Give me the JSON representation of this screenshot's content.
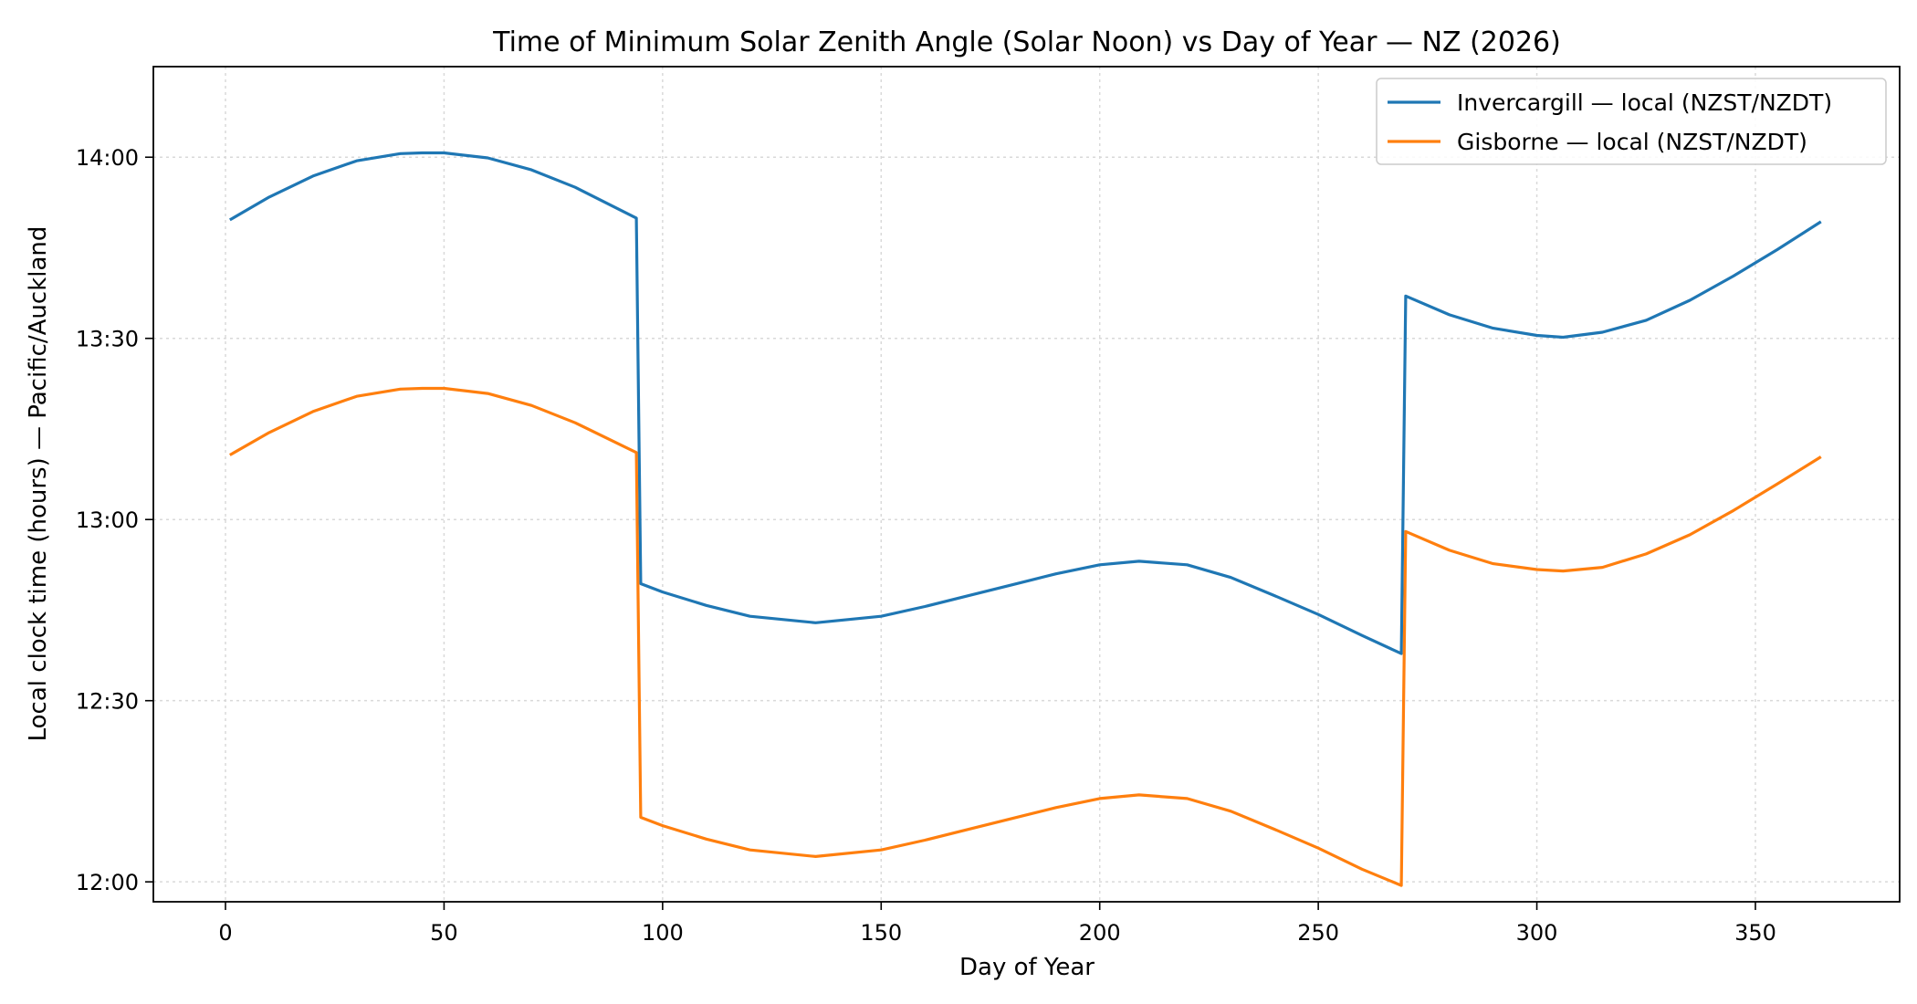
{
  "chart_data": {
    "type": "line",
    "title": "Time of Minimum Solar Zenith Angle (Solar Noon) vs Day of Year — NZ (2026)",
    "xlabel": "Day of Year",
    "ylabel": "Local clock time (hours) — Pacific/Auckland",
    "xlim": [
      -16.5,
      383
    ],
    "ylim": [
      11.945,
      14.25
    ],
    "xticks": [
      0,
      50,
      100,
      150,
      200,
      250,
      300,
      350
    ],
    "xtick_labels": [
      "0",
      "50",
      "100",
      "150",
      "200",
      "250",
      "300",
      "350"
    ],
    "yticks": [
      12.0,
      12.5,
      13.0,
      13.5,
      14.0
    ],
    "ytick_labels": [
      "12:00",
      "12:30",
      "13:00",
      "13:30",
      "14:00"
    ],
    "grid": true,
    "legend_position": "top-right",
    "series": [
      {
        "name": "Invercargill — local (NZST/NZDT)",
        "color": "#1f77b4",
        "x": [
          1,
          10,
          20,
          30,
          40,
          45,
          50,
          60,
          70,
          80,
          94,
          95,
          100,
          110,
          120,
          135,
          150,
          160,
          170,
          180,
          190,
          200,
          209,
          220,
          230,
          240,
          250,
          260,
          269,
          270,
          280,
          290,
          300,
          306,
          315,
          325,
          335,
          345,
          355,
          365
        ],
        "y": [
          13.827,
          13.89,
          13.948,
          13.99,
          14.01,
          14.012,
          14.012,
          13.998,
          13.965,
          13.917,
          13.832,
          12.823,
          12.8,
          12.763,
          12.733,
          12.715,
          12.733,
          12.76,
          12.79,
          12.82,
          12.85,
          12.875,
          12.885,
          12.875,
          12.84,
          12.79,
          12.738,
          12.68,
          12.63,
          13.617,
          13.565,
          13.528,
          13.508,
          13.503,
          13.517,
          13.55,
          13.605,
          13.672,
          13.745,
          13.822
        ]
      },
      {
        "name": "Gisborne — local (NZST/NZDT)",
        "color": "#ff7f0e",
        "x": [
          1,
          10,
          20,
          30,
          40,
          45,
          50,
          60,
          70,
          80,
          94,
          95,
          100,
          110,
          120,
          135,
          150,
          160,
          170,
          180,
          190,
          200,
          209,
          220,
          230,
          240,
          250,
          260,
          269,
          270,
          280,
          290,
          300,
          306,
          315,
          325,
          335,
          345,
          355,
          365
        ],
        "y": [
          13.178,
          13.24,
          13.298,
          13.34,
          13.36,
          13.362,
          13.362,
          13.348,
          13.315,
          13.267,
          13.185,
          12.178,
          12.155,
          12.118,
          12.088,
          12.07,
          12.088,
          12.115,
          12.145,
          12.175,
          12.205,
          12.23,
          12.24,
          12.23,
          12.195,
          12.145,
          12.093,
          12.035,
          11.99,
          12.967,
          12.915,
          12.878,
          12.862,
          12.858,
          12.868,
          12.905,
          12.958,
          13.025,
          13.098,
          13.173
        ]
      }
    ]
  }
}
